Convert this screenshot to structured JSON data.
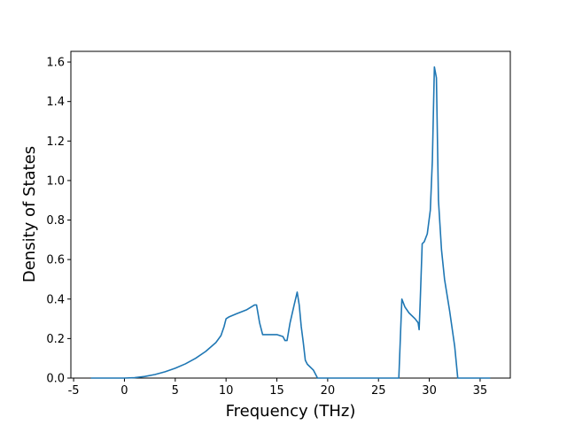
{
  "chart_data": {
    "type": "line",
    "xlabel": "Frequency (THz)",
    "ylabel": "Density of States",
    "x": [
      -3.3,
      0,
      1,
      2,
      3,
      4,
      5,
      6,
      7,
      8,
      9,
      9.5,
      9.8,
      10,
      10.3,
      11,
      12,
      12.8,
      13,
      13.3,
      13.6,
      14,
      15,
      15.6,
      15.8,
      16,
      16.3,
      16.7,
      17,
      17.2,
      17.4,
      17.6,
      17.8,
      18,
      18.6,
      18.9,
      19,
      27,
      27.3,
      27.6,
      28,
      28.6,
      28.9,
      29,
      29.1,
      29.3,
      29.5,
      29.8,
      30.1,
      30.3,
      30.5,
      30.7,
      30.9,
      31.2,
      31.5,
      32,
      32.5,
      32.8,
      36
    ],
    "series": [
      {
        "color": "#1f77b4",
        "values": [
          0,
          0,
          0.002,
          0.008,
          0.018,
          0.032,
          0.05,
          0.072,
          0.1,
          0.135,
          0.18,
          0.215,
          0.26,
          0.3,
          0.31,
          0.325,
          0.345,
          0.37,
          0.37,
          0.28,
          0.22,
          0.22,
          0.22,
          0.21,
          0.19,
          0.19,
          0.28,
          0.37,
          0.435,
          0.37,
          0.26,
          0.18,
          0.09,
          0.07,
          0.04,
          0.01,
          0,
          0,
          0.4,
          0.36,
          0.33,
          0.3,
          0.28,
          0.245,
          0.38,
          0.68,
          0.69,
          0.73,
          0.85,
          1.1,
          1.575,
          1.52,
          0.9,
          0.65,
          0.5,
          0.34,
          0.16,
          0,
          0
        ]
      }
    ],
    "xlim": [
      -5.27,
      37.97
    ],
    "xticks": [
      -5,
      0,
      5,
      10,
      15,
      20,
      25,
      30,
      35
    ],
    "ylim": [
      0,
      1.654
    ],
    "yticks": [
      {
        "value": 0,
        "label": "0.0"
      },
      {
        "value": 0.2,
        "label": "0.2"
      },
      {
        "value": 0.4,
        "label": "0.4"
      },
      {
        "value": 0.6,
        "label": "0.6"
      },
      {
        "value": 0.8,
        "label": "0.8"
      },
      {
        "value": 1.0,
        "label": "1.0"
      },
      {
        "value": 1.2,
        "label": "1.2"
      },
      {
        "value": 1.4,
        "label": "1.4"
      },
      {
        "value": 1.6,
        "label": "1.6"
      }
    ]
  }
}
